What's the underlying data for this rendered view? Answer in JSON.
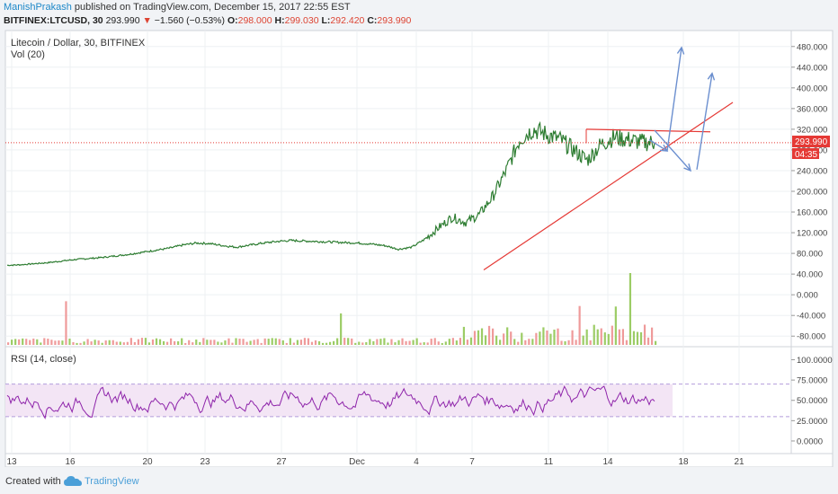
{
  "header": {
    "author": "ManishPrakash",
    "published": "published on TradingView.com, December 15, 2017 22:55 EST",
    "symbol": "BITFINEX:LTCUSD, 30",
    "last": "293.990",
    "arrow": "▼",
    "change": "−1.560 (−0.53%)",
    "o_label": "O:",
    "o": "298.000",
    "h_label": "H:",
    "h": "299.030",
    "l_label": "L:",
    "l": "292.420",
    "c_label": "C:",
    "c": "293.990"
  },
  "chart_data": [
    {
      "type": "line",
      "title": "Litecoin / Dollar, 30, BITFINEX",
      "subtitle": "Vol (20)",
      "x_ticks": [
        "13",
        "16",
        "20",
        "23",
        "27",
        "Dec",
        "4",
        "7",
        "11",
        "14",
        "18",
        "21"
      ],
      "y_ticks": [
        "480.000",
        "440.000",
        "400.000",
        "360.000",
        "320.000",
        "280.000",
        "240.000",
        "200.000",
        "160.000",
        "120.000",
        "80.000",
        "40.000",
        "0.000",
        "-40.000",
        "-80.000"
      ],
      "ylim": [
        -90,
        490
      ],
      "last_price_label": "293.990",
      "countdown_label": "04:35",
      "series": [
        {
          "values": [
            57,
            58,
            60,
            62,
            65,
            68,
            70,
            72,
            75,
            78,
            82,
            86,
            90,
            96,
            100,
            99,
            95,
            92,
            96,
            100,
            103,
            105,
            104,
            103,
            102,
            101,
            100,
            98,
            95,
            88,
            92,
            108,
            130,
            150,
            140,
            155,
            190,
            240,
            300,
            320,
            310,
            300,
            280,
            260,
            290,
            305,
            300,
            295,
            293.99
          ]
        }
      ],
      "annotations": [
        {
          "type": "trendline",
          "from": [
            0.72,
            48
          ],
          "to": [
            1.0,
            372
          ]
        },
        {
          "type": "horizontal",
          "value": 318,
          "from": 0.785,
          "to": 1.0
        },
        {
          "type": "horizontal",
          "value": 293.99,
          "style": "dotted"
        },
        {
          "type": "arrow",
          "description": "projected drop then rise"
        }
      ]
    },
    {
      "type": "line",
      "title": "RSI (14, close)",
      "y_ticks": [
        "100.0000",
        "75.0000",
        "50.0000",
        "25.0000",
        "0.0000"
      ],
      "ylim": [
        -10,
        105
      ],
      "band": [
        30,
        70
      ]
    }
  ],
  "footer": {
    "created": "Created with",
    "brand": "TradingView"
  },
  "colors": {
    "price_line": "#2e7d32",
    "trend": "#e53935",
    "arrow": "#6b8fcf",
    "rsi": "#8e24aa",
    "rsi_band": "#f3e5f5",
    "price_label_bg": "#e53935"
  }
}
